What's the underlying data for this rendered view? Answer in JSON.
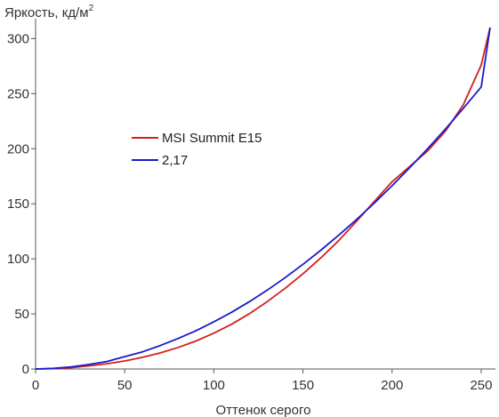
{
  "chart_data": {
    "type": "line",
    "ylabel": "Яркость, кд/м",
    "ylabel_superscript": "2",
    "xlabel": "Оттенок серого",
    "xlim": [
      0,
      255
    ],
    "ylim": [
      0,
      310
    ],
    "xticks": [
      0,
      50,
      100,
      150,
      200,
      250
    ],
    "yticks": [
      0,
      50,
      100,
      150,
      200,
      250,
      300
    ],
    "grid": false,
    "legend_position": "center-left",
    "series": [
      {
        "name": "MSI Summit E15",
        "color": "#d42020",
        "x": [
          0,
          10,
          20,
          30,
          40,
          50,
          60,
          70,
          80,
          90,
          100,
          110,
          120,
          130,
          140,
          150,
          160,
          170,
          180,
          190,
          200,
          210,
          220,
          230,
          240,
          250,
          255
        ],
        "y": [
          0,
          0.3,
          1.2,
          2.8,
          4.8,
          7.3,
          10.6,
          14.6,
          19.5,
          25.4,
          32.5,
          40.6,
          50.3,
          61.2,
          73.2,
          86.5,
          100.8,
          116.5,
          134,
          152,
          170,
          184,
          198,
          216,
          240,
          276,
          310
        ]
      },
      {
        "name": "2,17",
        "color": "#1a1acc",
        "x": [
          0,
          10,
          20,
          30,
          40,
          50,
          60,
          70,
          80,
          90,
          100,
          110,
          120,
          130,
          140,
          150,
          160,
          170,
          180,
          190,
          200,
          210,
          220,
          230,
          240,
          250,
          255
        ],
        "y": [
          0,
          0.6,
          1.9,
          4.1,
          6.8,
          11.2,
          15.6,
          21.3,
          27.7,
          34.8,
          42.9,
          51.5,
          61.2,
          71.6,
          82.9,
          95,
          107.8,
          121.4,
          135.6,
          150.6,
          166.4,
          182.9,
          200.1,
          218,
          236.7,
          256.1,
          310
        ]
      }
    ]
  }
}
